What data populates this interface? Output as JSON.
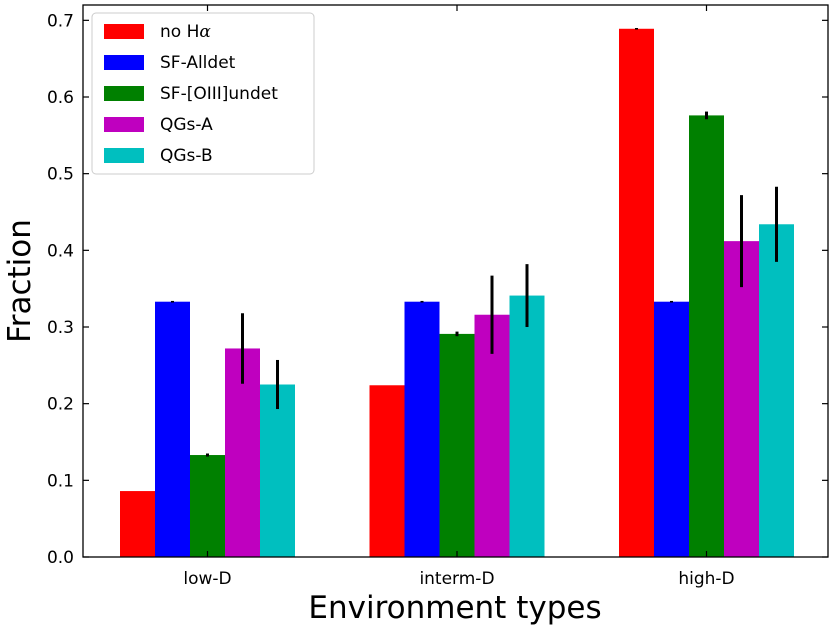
{
  "chart_data": {
    "type": "bar",
    "title": "",
    "xlabel": "Environment types",
    "ylabel": "Fraction",
    "categories": [
      "low-D",
      "interm-D",
      "high-D"
    ],
    "ylim": [
      0,
      0.72
    ],
    "yticks": [
      0.0,
      0.1,
      0.2,
      0.3,
      0.4,
      0.5,
      0.6,
      0.7
    ],
    "ytick_labels": [
      "0.0",
      "0.1",
      "0.2",
      "0.3",
      "0.4",
      "0.5",
      "0.6",
      "0.7"
    ],
    "grid": false,
    "legend_position": "top-left",
    "series": [
      {
        "name": "no Hα",
        "name_parts": [
          "no H",
          "α"
        ],
        "color": "#ff0000",
        "values": [
          0.086,
          0.224,
          0.689
        ],
        "errors": [
          0.0,
          0.0,
          0.001
        ]
      },
      {
        "name": "SF-Alldet",
        "color": "#0000ff",
        "values": [
          0.333,
          0.333,
          0.333
        ],
        "errors": [
          0.001,
          0.001,
          0.001
        ]
      },
      {
        "name": "SF-[OIII]undet",
        "color": "#008000",
        "values": [
          0.133,
          0.291,
          0.576
        ],
        "errors": [
          0.002,
          0.003,
          0.005
        ]
      },
      {
        "name": "QGs-A",
        "color": "#bf00bf",
        "values": [
          0.272,
          0.316,
          0.412
        ],
        "errors": [
          0.046,
          0.051,
          0.06
        ]
      },
      {
        "name": "QGs-B",
        "color": "#00bfbf",
        "values": [
          0.225,
          0.341,
          0.434
        ],
        "errors": [
          0.032,
          0.041,
          0.049
        ]
      }
    ]
  }
}
